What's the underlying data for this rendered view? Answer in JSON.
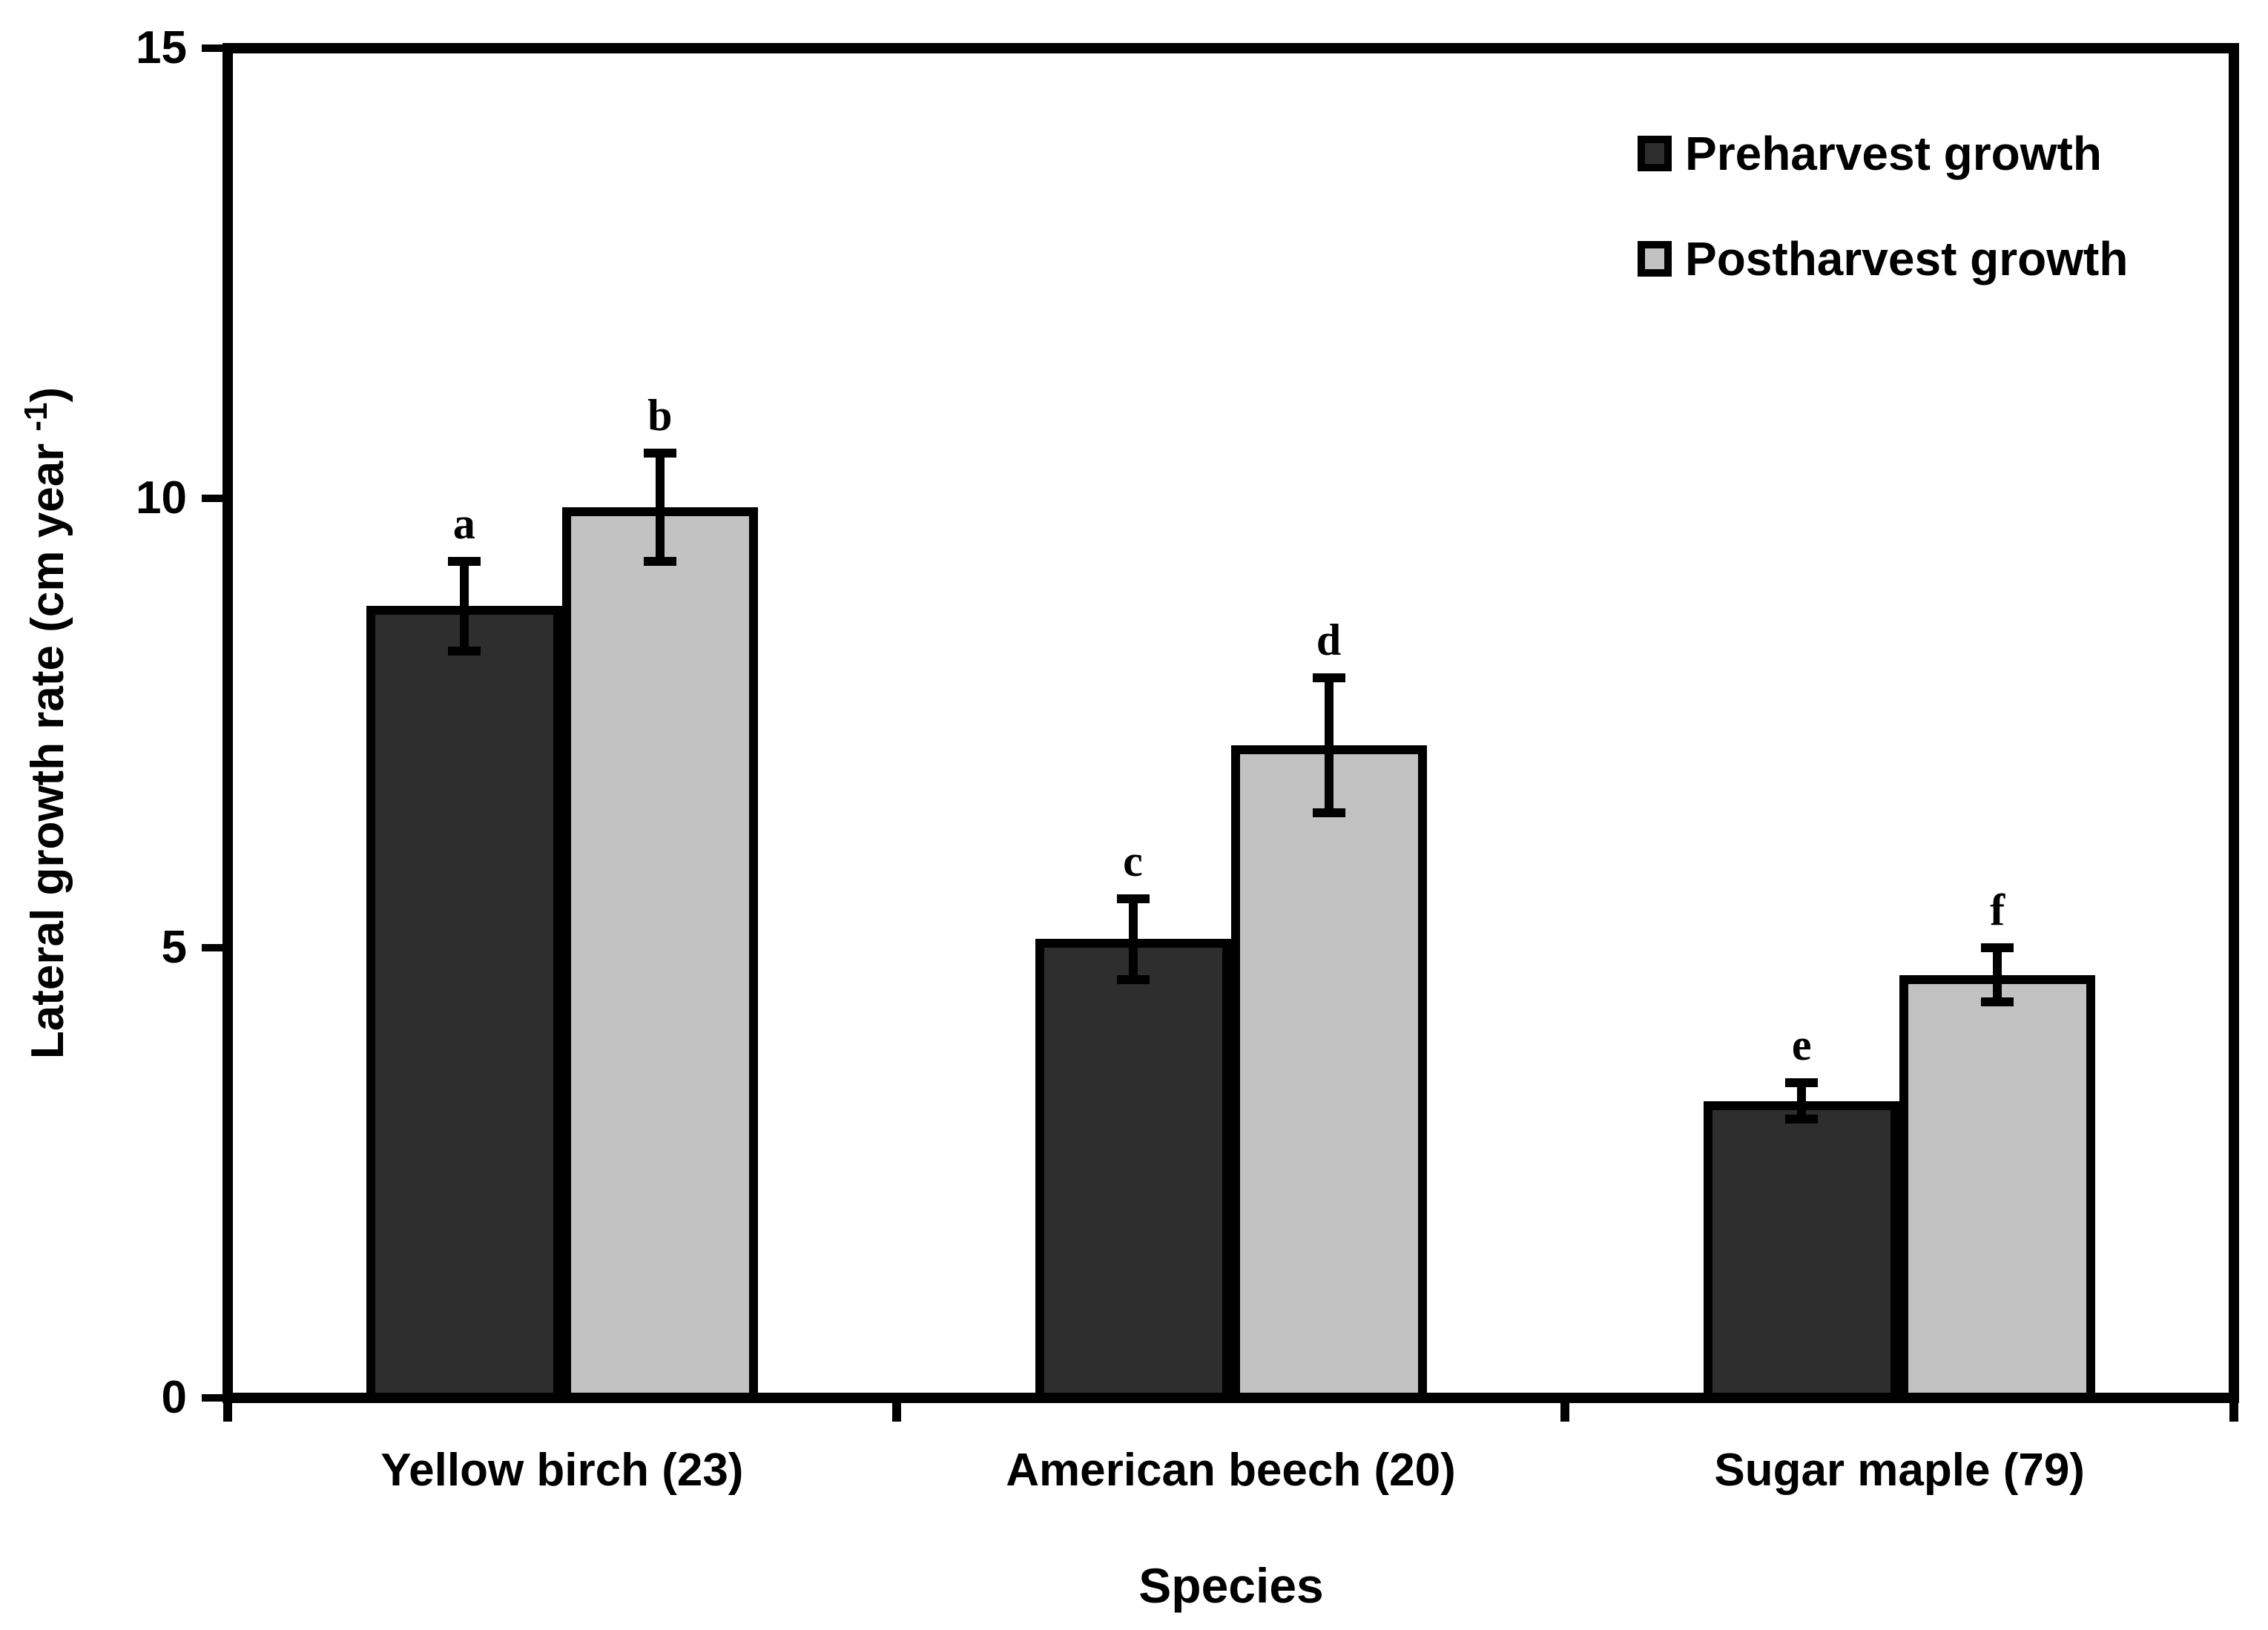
{
  "chart_data": {
    "type": "bar",
    "title": "",
    "xlabel": "Species",
    "ylabel": "Lateral growth rate (cm year -1)",
    "ylabel_prefix": "Lateral growth rate (cm year",
    "ylabel_sup": "-1",
    "ylabel_suffix": ")",
    "ylim": [
      0,
      15
    ],
    "yticks": [
      0,
      5,
      10,
      15
    ],
    "grid": false,
    "legend_position": "top-right",
    "categories": [
      "Yellow birch (23)",
      "American beech (20)",
      "Sugar maple (79)"
    ],
    "series": [
      {
        "name": "Preharvest growth",
        "color": "#2e2e2e",
        "values": [
          8.8,
          5.1,
          3.3
        ],
        "errors": [
          0.5,
          0.45,
          0.2
        ],
        "letters": [
          "a",
          "c",
          "e"
        ]
      },
      {
        "name": "Postharvest growth",
        "color": "#c2c2c2",
        "values": [
          9.9,
          7.25,
          4.7
        ],
        "errors": [
          0.6,
          0.75,
          0.3
        ],
        "letters": [
          "b",
          "d",
          "f"
        ]
      }
    ],
    "colors": {
      "axis": "#000000",
      "background": "#ffffff",
      "text": "#000000"
    }
  }
}
